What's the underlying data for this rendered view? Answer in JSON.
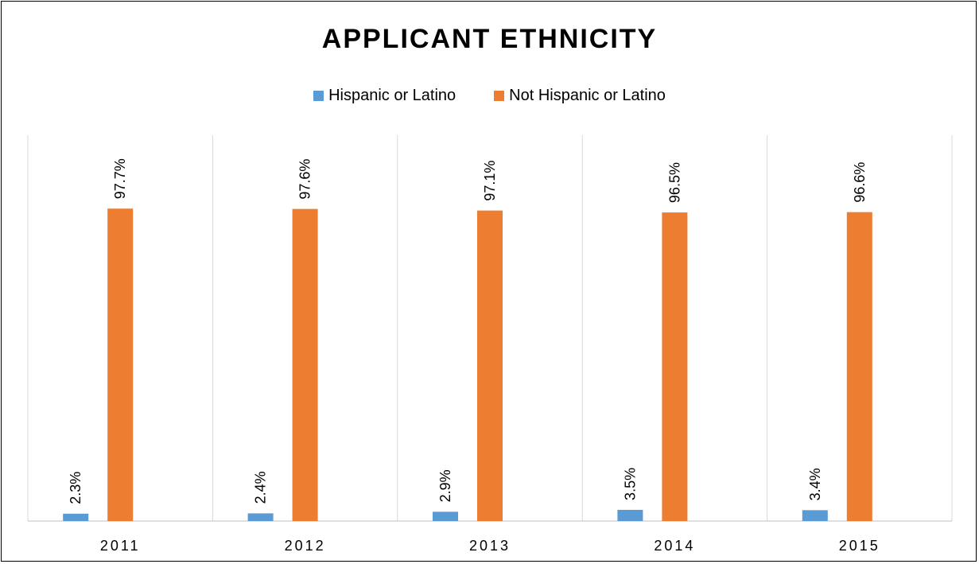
{
  "chart_data": {
    "type": "bar",
    "title": "APPLICANT ETHNICITY",
    "categories": [
      "2011",
      "2012",
      "2013",
      "2014",
      "2015"
    ],
    "series": [
      {
        "name": "Hispanic or Latino",
        "values": [
          2.3,
          2.4,
          2.9,
          3.5,
          3.4
        ],
        "labels": [
          "2.3%",
          "2.4%",
          "2.9%",
          "3.5%",
          "3.4%"
        ],
        "color": "#5B9BD5"
      },
      {
        "name": "Not Hispanic or Latino",
        "values": [
          97.7,
          97.6,
          97.1,
          96.5,
          96.6
        ],
        "labels": [
          "97.7%",
          "97.6%",
          "97.1%",
          "96.5%",
          "96.6%"
        ],
        "color": "#ED7D31"
      }
    ],
    "ylim": [
      0,
      100
    ],
    "legend": "top",
    "grid": "vertical category separators",
    "data_labels": "rotated above bars"
  }
}
